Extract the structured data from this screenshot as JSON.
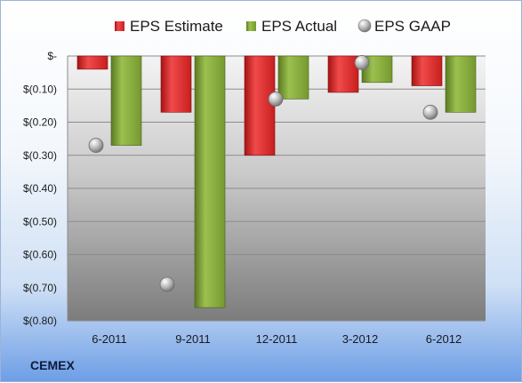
{
  "company": "CEMEX",
  "colors": {
    "estimate": "#d92626",
    "actual": "#7fa33a",
    "gaap": "#c0c0c0"
  },
  "chart_data": {
    "type": "bar",
    "categories": [
      "6-2011",
      "9-2011",
      "12-2011",
      "3-2012",
      "6-2012"
    ],
    "series": [
      {
        "name": "EPS Estimate",
        "values": [
          -0.04,
          -0.17,
          -0.3,
          -0.11,
          -0.09
        ]
      },
      {
        "name": "EPS Actual",
        "values": [
          -0.27,
          -0.76,
          -0.13,
          -0.08,
          -0.17
        ]
      },
      {
        "name": "EPS GAAP",
        "values": [
          -0.27,
          -0.69,
          -0.13,
          -0.02,
          -0.17
        ]
      }
    ],
    "ylim": [
      -0.8,
      0
    ],
    "yticks": [
      0,
      -0.1,
      -0.2,
      -0.3,
      -0.4,
      -0.5,
      -0.6,
      -0.7,
      -0.8
    ],
    "ytick_labels": [
      "$-",
      "$(0.10)",
      "$(0.20)",
      "$(0.30)",
      "$(0.40)",
      "$(0.50)",
      "$(0.60)",
      "$(0.70)",
      "$(0.80)"
    ],
    "legend_position": "top",
    "grid": true
  }
}
